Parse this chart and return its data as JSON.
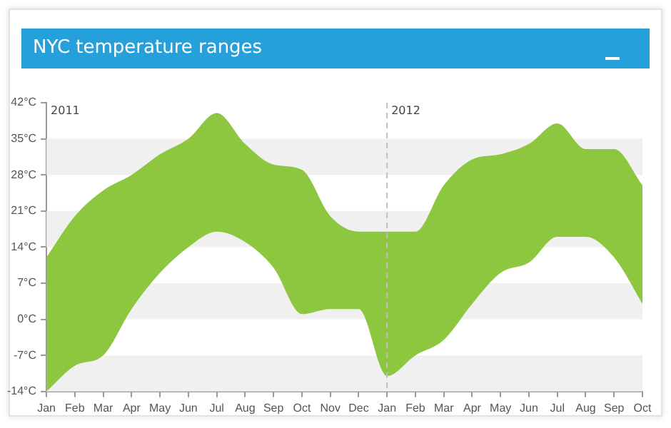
{
  "chart_data": {
    "type": "area",
    "title": "NYC temperature ranges",
    "x": [
      "2011-01",
      "2011-02",
      "2011-03",
      "2011-04",
      "2011-05",
      "2011-06",
      "2011-07",
      "2011-08",
      "2011-09",
      "2011-10",
      "2011-11",
      "2011-12",
      "2012-01",
      "2012-02",
      "2012-03",
      "2012-04",
      "2012-05",
      "2012-06",
      "2012-07",
      "2012-08",
      "2012-09",
      "2012-10"
    ],
    "series": [
      {
        "color": "#8dc63f",
        "values": [
          null,
          null,
          null,
          null,
          null,
          null,
          null,
          null,
          null,
          null,
          null,
          null,
          null,
          null,
          null,
          null,
          null,
          null,
          null,
          null,
          null,
          null
        ],
        "upper": [
          12,
          20,
          25,
          28,
          32,
          35,
          40,
          34,
          30,
          29,
          20,
          17,
          17,
          17,
          26,
          31,
          32,
          34,
          38,
          33,
          33,
          26
        ],
        "lower": [
          -14,
          -9,
          -7,
          2,
          9,
          14,
          17,
          15,
          10,
          1,
          2,
          2,
          -11,
          -7,
          -4,
          3,
          9,
          11,
          16,
          16,
          12,
          3
        ]
      }
    ],
    "xlim": [
      "2011-01",
      "2012-10"
    ],
    "xticks": [
      {
        "value": "2011-01",
        "label": "Jan"
      },
      {
        "value": "2011-02",
        "label": "Feb"
      },
      {
        "value": "2011-03",
        "label": "Mar"
      },
      {
        "value": "2011-04",
        "label": "Apr"
      },
      {
        "value": "2011-05",
        "label": "May"
      },
      {
        "value": "2011-06",
        "label": "Jun"
      },
      {
        "value": "2011-07",
        "label": "Jul"
      },
      {
        "value": "2011-08",
        "label": "Aug"
      },
      {
        "value": "2011-09",
        "label": "Sep"
      },
      {
        "value": "2011-10",
        "label": "Oct"
      },
      {
        "value": "2011-11",
        "label": "Nov"
      },
      {
        "value": "2011-12",
        "label": "Dec"
      },
      {
        "value": "2012-01",
        "label": "Jan"
      },
      {
        "value": "2012-02",
        "label": "Feb"
      },
      {
        "value": "2012-03",
        "label": "Mar"
      },
      {
        "value": "2012-04",
        "label": "Apr"
      },
      {
        "value": "2012-05",
        "label": "May"
      },
      {
        "value": "2012-06",
        "label": "Jun"
      },
      {
        "value": "2012-07",
        "label": "Jul"
      },
      {
        "value": "2012-08",
        "label": "Aug"
      },
      {
        "value": "2012-09",
        "label": "Sep"
      },
      {
        "value": "2012-10",
        "label": "Oct"
      }
    ],
    "ylim": [
      -14,
      42
    ],
    "yticks": [
      {
        "value": -14,
        "label": "-14°C"
      },
      {
        "value": -7,
        "label": "-7°C"
      },
      {
        "value": 0,
        "label": "0°C"
      },
      {
        "value": 7,
        "label": "7°C"
      },
      {
        "value": 14,
        "label": "14°C"
      },
      {
        "value": 21,
        "label": "21°C"
      },
      {
        "value": 28,
        "label": "28°C"
      },
      {
        "value": 35,
        "label": "35°C"
      },
      {
        "value": 42,
        "label": "42°C"
      }
    ],
    "ref_lines": [
      {
        "axis": "x",
        "value": "2012-01",
        "label": "2012",
        "color": "#c0c0c0",
        "line_style": "dashed"
      }
    ],
    "annotations": [
      "2011"
    ],
    "bands": [
      {
        "axis": "y",
        "from": -14,
        "to": -7,
        "color": "#f0f0f0"
      },
      {
        "axis": "y",
        "from": 0,
        "to": 7,
        "color": "#f0f0f0"
      },
      {
        "axis": "y",
        "from": 14,
        "to": 21,
        "color": "#f0f0f0"
      },
      {
        "axis": "y",
        "from": 28,
        "to": 35,
        "color": "#f0f0f0"
      }
    ],
    "legend": false
  }
}
